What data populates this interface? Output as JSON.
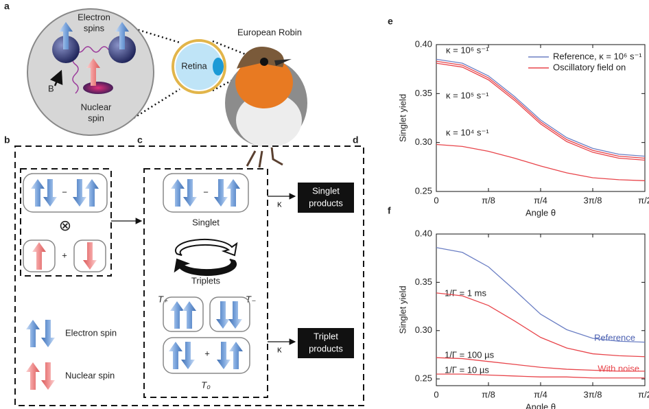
{
  "diagram": {
    "a": {
      "label": "a",
      "electron_spins": [
        "Electron",
        "spins"
      ],
      "field": "B",
      "nuclear_spin": [
        "Nuclear",
        "spin"
      ],
      "retina": "Retina",
      "bird": "European Robin"
    },
    "b": {
      "label": "b",
      "minus": "−",
      "tensor": "⊗",
      "plus": "+",
      "electron_spin": "Electron spin",
      "nuclear_spin": "Nuclear spin"
    },
    "c": {
      "label": "c",
      "singlet": "Singlet",
      "triplets": "Triplets",
      "t_plus": "T₊",
      "t_minus": "T₋",
      "t_zero": "T₀"
    },
    "d": {
      "label": "d",
      "rate": "κ",
      "singlet_products": [
        "Singlet",
        "products"
      ],
      "triplet_products": [
        "Triplet",
        "products"
      ]
    }
  },
  "chart_data": [
    {
      "type": "line",
      "label": "e",
      "xlabel": "Angle θ",
      "ylabel": "Singlet yield",
      "x": [
        0,
        0.1963,
        0.3927,
        0.589,
        0.7854,
        0.9817,
        1.1781,
        1.3744,
        1.5708
      ],
      "xlim": [
        0,
        1.5708
      ],
      "xticks": [
        0,
        {
          "value": 0.3927,
          "label": "π/8"
        },
        {
          "value": 0.7854,
          "label": "π/4"
        },
        {
          "value": 1.1781,
          "label": "3π/8"
        },
        {
          "value": 1.5708,
          "label": "π/2"
        }
      ],
      "ylim": [
        0.25,
        0.4
      ],
      "yticks": [
        0.25,
        {
          "value": 0.3,
          "label": "0.30"
        },
        0.35,
        {
          "value": 0.4,
          "label": "0.40"
        }
      ],
      "legend": "upper right",
      "series": [
        {
          "name": "Reference, κ = 10⁶ s⁻¹",
          "color": "#6b7fc4",
          "values": [
            0.385,
            0.381,
            0.368,
            0.347,
            0.323,
            0.305,
            0.294,
            0.288,
            0.286
          ]
        },
        {
          "name": "Oscillatory field on",
          "color": "#e8444a",
          "values": [
            0.383,
            0.379,
            0.366,
            0.345,
            0.321,
            0.303,
            0.292,
            0.286,
            0.284
          ]
        },
        {
          "color": "#e8444a",
          "values": [
            0.381,
            0.377,
            0.364,
            0.343,
            0.319,
            0.301,
            0.29,
            0.284,
            0.282
          ]
        },
        {
          "color": "#e8444a",
          "values": [
            0.298,
            0.296,
            0.291,
            0.284,
            0.276,
            0.269,
            0.264,
            0.262,
            0.261
          ]
        }
      ],
      "annotations": [
        "κ = 10⁶ s⁻¹",
        "κ = 10⁵ s⁻¹",
        "κ = 10⁴ s⁻¹"
      ]
    },
    {
      "type": "line",
      "label": "f",
      "xlabel": "Angle θ",
      "ylabel": "Singlet yield",
      "x": [
        0,
        0.1963,
        0.3927,
        0.589,
        0.7854,
        0.9817,
        1.1781,
        1.3744,
        1.5708
      ],
      "xlim": [
        0,
        1.5708
      ],
      "xticks": [
        0,
        {
          "value": 0.3927,
          "label": "π/8"
        },
        {
          "value": 0.7854,
          "label": "π/4"
        },
        {
          "value": 1.1781,
          "label": "3π/8"
        },
        {
          "value": 1.5708,
          "label": "π/2"
        }
      ],
      "ylim": [
        0.243,
        0.4
      ],
      "yticks": [
        0.25,
        {
          "value": 0.3,
          "label": "0.30"
        },
        0.35,
        {
          "value": 0.4,
          "label": "0.40"
        }
      ],
      "series": [
        {
          "color": "#6b7fc4",
          "values": [
            0.386,
            0.381,
            0.366,
            0.342,
            0.317,
            0.301,
            0.292,
            0.289,
            0.288
          ]
        },
        {
          "color": "#e8444a",
          "values": [
            0.339,
            0.336,
            0.326,
            0.31,
            0.293,
            0.282,
            0.276,
            0.274,
            0.273
          ]
        },
        {
          "color": "#e8444a",
          "values": [
            0.272,
            0.271,
            0.268,
            0.265,
            0.262,
            0.26,
            0.259,
            0.258,
            0.258
          ]
        },
        {
          "color": "#e8444a",
          "values": [
            0.255,
            0.255,
            0.254,
            0.253,
            0.252,
            0.252,
            0.251,
            0.251,
            0.251
          ]
        }
      ],
      "annotations": [
        "1/Γ = 1 ms",
        "1/Γ = 100 µs",
        "1/Γ = 10 µs",
        "Reference",
        "With noise"
      ]
    }
  ]
}
